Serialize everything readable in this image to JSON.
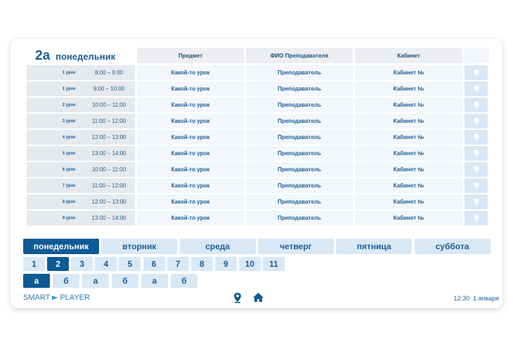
{
  "header": {
    "class": "2а",
    "day": "понедельник"
  },
  "columns": [
    "Предмет",
    "ФИО Преподавателя",
    "Кабинет"
  ],
  "rows": [
    {
      "lesson": "1 урок",
      "time": "8:00 – 9:00",
      "subject": "Какой-то урок",
      "teacher": "Преподаватель",
      "room": "Кабинет №"
    },
    {
      "lesson": "1 урок",
      "time": "9:00 – 10:00",
      "subject": "Какой-то урок",
      "teacher": "Преподаватель",
      "room": "Кабинет №"
    },
    {
      "lesson": "2 урок",
      "time": "10:00 – 11:00",
      "subject": "Какой-то урок",
      "teacher": "Преподаватель",
      "room": "Кабинет №"
    },
    {
      "lesson": "3 урок",
      "time": "11:00 – 12:00",
      "subject": "Какой-то урок",
      "teacher": "Преподаватель",
      "room": "Кабинет №"
    },
    {
      "lesson": "4 урок",
      "time": "12:00 – 13:00",
      "subject": "Какой-то урок",
      "teacher": "Преподаватель",
      "room": "Кабинет №"
    },
    {
      "lesson": "5 урок",
      "time": "13:00 – 14:00",
      "subject": "Какой-то урок",
      "teacher": "Преподаватель",
      "room": "Кабинет №"
    },
    {
      "lesson": "6 урок",
      "time": "10:00 – 11:00",
      "subject": "Какой-то урок",
      "teacher": "Преподаватель",
      "room": "Кабинет №"
    },
    {
      "lesson": "7 урок",
      "time": "11:00 – 12:00",
      "subject": "Какой-то урок",
      "teacher": "Преподаватель",
      "room": "Кабинет №"
    },
    {
      "lesson": "8 урок",
      "time": "12:00 – 13:00",
      "subject": "Какой-то урок",
      "teacher": "Преподаватель",
      "room": "Кабинет №"
    },
    {
      "lesson": "9 урок",
      "time": "13:00 – 14:00",
      "subject": "Какой-то урок",
      "teacher": "Преподаватель",
      "room": "Кабинет №"
    }
  ],
  "days": [
    "понедельник",
    "вторник",
    "среда",
    "четверг",
    "пятница",
    "суббота"
  ],
  "selected_day": 0,
  "grades": [
    "1",
    "2",
    "3",
    "4",
    "5",
    "6",
    "7",
    "8",
    "9",
    "10",
    "11"
  ],
  "selected_grade": 1,
  "letters": [
    "а",
    "б",
    "а",
    "б",
    "а",
    "б"
  ],
  "selected_letter": 0,
  "footer": {
    "brand_left": "SMART",
    "brand_right": "PLAYER",
    "time": "12:30",
    "date": "1 января"
  }
}
